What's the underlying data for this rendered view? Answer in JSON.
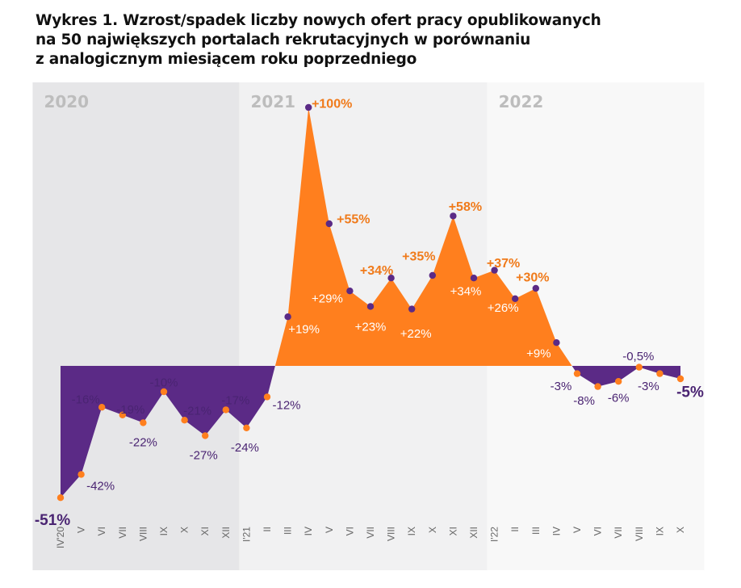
{
  "chart_data": {
    "type": "area",
    "title_lines": [
      "Wykres 1. Wzrost/spadek liczby nowych ofert pracy opublikowanych",
      "na 50 największych portalach rekrutacyjnych w porównaniu",
      "z analogicznym miesiącem roku poprzedniego"
    ],
    "year_labels": [
      "2020",
      "2021",
      "2022"
    ],
    "categories": [
      "IV'20",
      "V",
      "VI",
      "VII",
      "VIII",
      "IX",
      "X",
      "XI",
      "XII",
      "I'21",
      "II",
      "III",
      "IV",
      "V",
      "VI",
      "VII",
      "VIII",
      "IX",
      "X",
      "XI",
      "XII",
      "I'22",
      "II",
      "III",
      "IV",
      "V",
      "VI",
      "VII",
      "VIII",
      "IX",
      "X"
    ],
    "values": [
      -51,
      -42,
      -16,
      -19,
      -22,
      -10,
      -21,
      -27,
      -17,
      -24,
      -12,
      19,
      100,
      55,
      29,
      23,
      34,
      22,
      35,
      58,
      34,
      37,
      26,
      30,
      9,
      -3,
      -8,
      -6,
      -0.5,
      -3,
      -5
    ],
    "value_labels": [
      "-51%",
      "-42%",
      "-16%",
      "-19%",
      "-22%",
      "-10%",
      "-21%",
      "-27%",
      "-17%",
      "-24%",
      "-12%",
      "+19%",
      "+100%",
      "+55%",
      "+29%",
      "+23%",
      "+34%",
      "+22%",
      "+35%",
      "+58%",
      "+34%",
      "+37%",
      "+26%",
      "+30%",
      "+9%",
      "-3%",
      "-8%",
      "-6%",
      "-0,5%",
      "-3%",
      "-5%"
    ],
    "ylim": [
      -55,
      105
    ],
    "colors": {
      "positive_fill": "#FF7F1E",
      "negative_fill": "#5B2A86",
      "orange_text": "#F07A1A",
      "purple_text": "#4A2472",
      "white_text": "#FFFFFF",
      "band_2020": "#E6E6E8",
      "band_2021": "#F1F1F2",
      "band_2022": "#F8F8F8",
      "year_label": "#BDBDBD"
    }
  }
}
